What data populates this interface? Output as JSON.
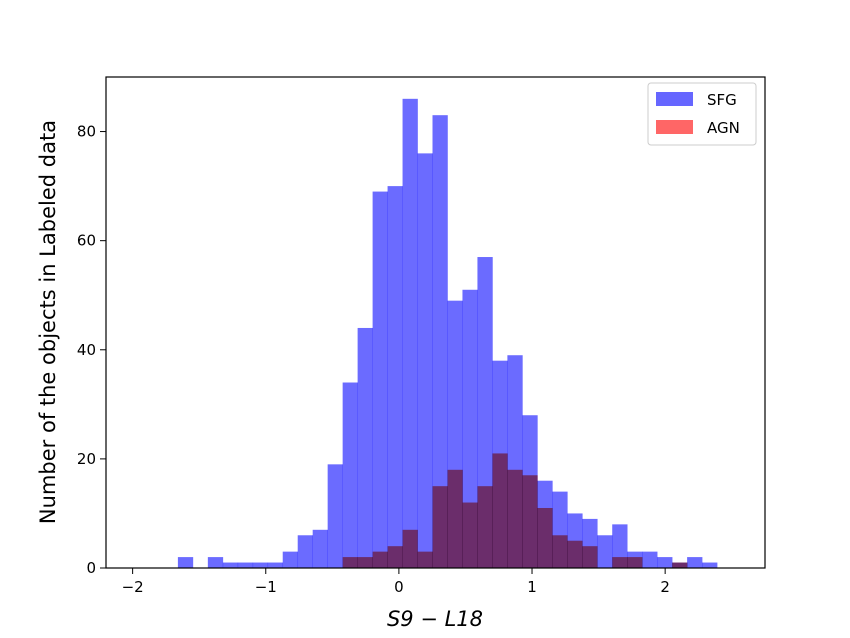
{
  "chart_data": {
    "type": "bar",
    "subtype": "histogram",
    "title": "",
    "xlabel": "S9 − L18",
    "ylabel": "Number of the objects in Labeled data",
    "xlim": [
      -2.2,
      2.75
    ],
    "ylim": [
      0,
      90
    ],
    "x_ticks": [
      -2,
      -1,
      0,
      1,
      2
    ],
    "x_tick_labels": [
      "−2",
      "−1",
      "0",
      "1",
      "2"
    ],
    "y_ticks": [
      0,
      20,
      40,
      60,
      80
    ],
    "y_tick_labels": [
      "0",
      "20",
      "40",
      "60",
      "80"
    ],
    "grid": false,
    "legend_position": "top-right",
    "bin_start": -1.66,
    "bin_width": 0.1125,
    "series": [
      {
        "name": "SFG",
        "color": "#6666ff",
        "counts": [
          2,
          0,
          2,
          1,
          1,
          1,
          1,
          3,
          6,
          7,
          19,
          34,
          44,
          69,
          70,
          86,
          76,
          83,
          49,
          51,
          57,
          38,
          39,
          28,
          16,
          14,
          10,
          9,
          6,
          8,
          3,
          3,
          2,
          1,
          2,
          1
        ]
      },
      {
        "name": "AGN",
        "color": "#ff6666",
        "counts": [
          0,
          0,
          0,
          0,
          0,
          0,
          0,
          0,
          0,
          0,
          0,
          2,
          2,
          3,
          4,
          7,
          3,
          15,
          18,
          12,
          15,
          21,
          18,
          17,
          11,
          6,
          5,
          4,
          0,
          2,
          2,
          0,
          0,
          1,
          0,
          0
        ]
      }
    ]
  }
}
